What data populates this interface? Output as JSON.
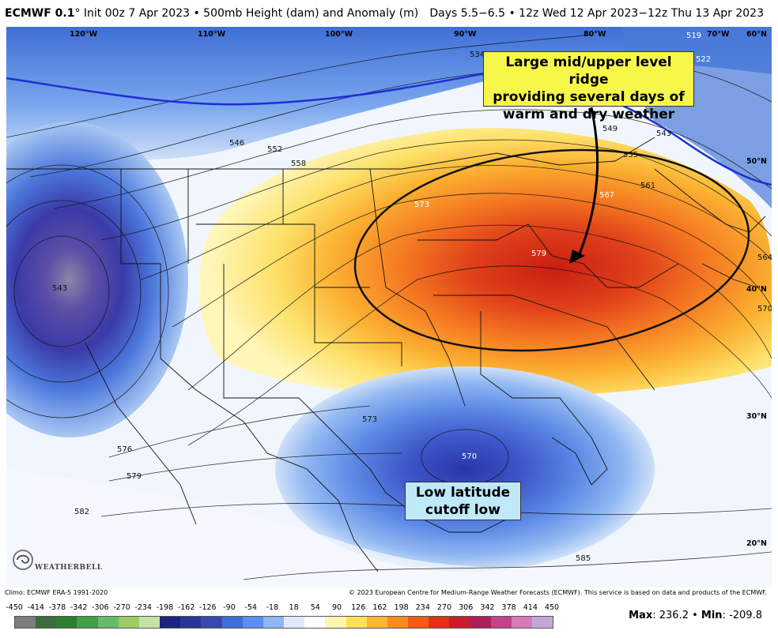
{
  "header": {
    "model": "ECMWF 0.1",
    "init": "° Init 00z 7 Apr 2023 • 500mb Height (dam) and Anomaly (m)",
    "valid": "Days 5.5−6.5 • 12z Wed 12 Apr 2023−12z Thu 13 Apr 2023"
  },
  "callouts": {
    "ridge_line1": "Large mid/upper level ridge",
    "ridge_line2": "providing several days of",
    "ridge_line3": "warm and dry weather",
    "low_line1": "Low latitude",
    "low_line2": "cutoff low"
  },
  "longitudes": [
    "120°W",
    "110°W",
    "100°W",
    "90°W",
    "80°W",
    "70°W",
    "60°N"
  ],
  "latitudes": [
    "50°N",
    "40°N",
    "30°N",
    "20°N"
  ],
  "contours": [
    "519",
    "522",
    "534",
    "543",
    "546",
    "549",
    "552",
    "555",
    "558",
    "561",
    "564",
    "567",
    "570",
    "573",
    "576",
    "579",
    "582",
    "585",
    "543",
    "573",
    "579",
    "570",
    "573"
  ],
  "credits": {
    "climo": "Climo: ECMWF ERA-5 1991-2020",
    "copyright": "© 2023 European Centre for Medium-Range Weather Forecasts (ECMWF). This service is based on data and products of the ECMWF.",
    "logo": "WEATHERBELL"
  },
  "colorbar": {
    "ticks": [
      "-450",
      "-414",
      "-378",
      "-342",
      "-306",
      "-270",
      "-234",
      "-198",
      "-162",
      "-126",
      "-90",
      "-54",
      "-18",
      "18",
      "54",
      "90",
      "126",
      "162",
      "198",
      "234",
      "270",
      "306",
      "342",
      "378",
      "414",
      "450"
    ],
    "colors": [
      "#7d7d7d",
      "#3d6b3d",
      "#2e7d32",
      "#43a047",
      "#66bb6a",
      "#9ccc65",
      "#c5e1a5",
      "#1a237e",
      "#283593",
      "#3949ab",
      "#3f6fd6",
      "#5b8ef0",
      "#8fb6f5",
      "#dfeaf9",
      "#ffffff",
      "#fff6b0",
      "#fde05a",
      "#fcb830",
      "#f98c1e",
      "#f25c14",
      "#e03214",
      "#c81e2a",
      "#b01e5a",
      "#c2448a",
      "#d87ab8",
      "#c4a6d6"
    ]
  },
  "stats": {
    "max_label": "Max",
    "max_value": "236.2",
    "min_label": "Min",
    "min_value": "-209.8"
  }
}
